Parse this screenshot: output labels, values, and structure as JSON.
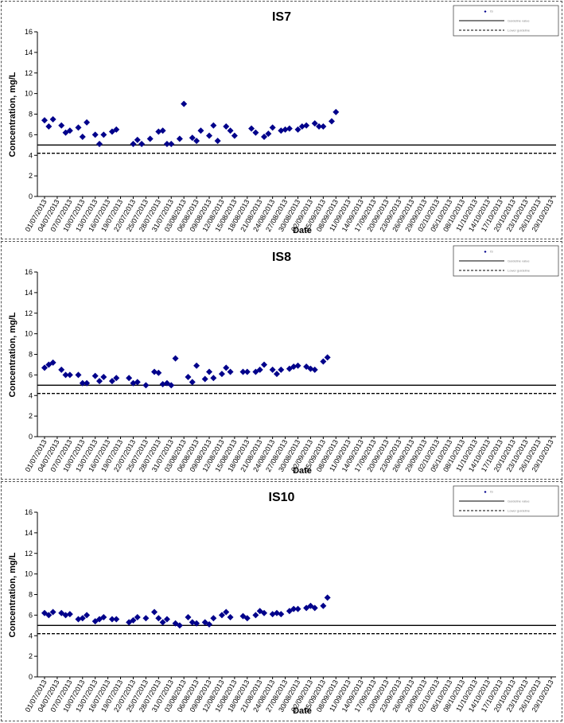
{
  "charts": [
    {
      "title": "IS7",
      "ylabel": "Concentration, mg/L",
      "xlabel": "Date",
      "legend": {
        "series": "IS",
        "line1": "Guideline value",
        "line2": "Lower guideline"
      }
    },
    {
      "title": "IS8",
      "ylabel": "Concentration, mg/L",
      "xlabel": "Date",
      "legend": {
        "series": "IS",
        "line1": "Guideline value",
        "line2": "Lower guideline"
      }
    },
    {
      "title": "IS10",
      "ylabel": "Concentration, mg/L",
      "xlabel": "Date",
      "legend": {
        "series": "IS",
        "line1": "Guideline value",
        "line2": "Lower guideline"
      }
    }
  ],
  "chart_data": [
    {
      "type": "scatter",
      "title": "IS7",
      "xlabel": "Date",
      "ylabel": "Concentration, mg/L",
      "ylim": [
        0,
        16
      ],
      "yticks": [
        0,
        2,
        4,
        6,
        8,
        10,
        12,
        14,
        16
      ],
      "x_tick_labels": [
        "01/07/2013",
        "04/07/2013",
        "07/07/2013",
        "10/07/2013",
        "13/07/2013",
        "16/07/2013",
        "19/07/2013",
        "22/07/2013",
        "25/07/2013",
        "28/07/2013",
        "31/07/2013",
        "03/08/2013",
        "06/08/2013",
        "09/08/2013",
        "12/08/2013",
        "15/08/2013",
        "18/08/2013",
        "21/08/2013",
        "24/08/2013",
        "27/08/2013",
        "30/08/2013",
        "02/09/2013",
        "05/09/2013",
        "08/09/2013",
        "11/09/2013",
        "14/09/2013",
        "17/09/2013",
        "20/09/2013",
        "23/09/2013",
        "26/09/2013",
        "29/09/2013",
        "02/10/2013",
        "05/10/2013",
        "08/10/2013",
        "11/10/2013",
        "14/10/2013",
        "17/10/2013",
        "20/10/2013",
        "23/10/2013",
        "26/10/2013",
        "29/10/2013"
      ],
      "reference_lines": [
        {
          "y": 5.0,
          "style": "solid"
        },
        {
          "y": 4.2,
          "style": "dashed"
        }
      ],
      "legend_position": "top-right",
      "series": [
        {
          "marker": "diamond",
          "color": "#00008B",
          "points": [
            [
              "01/07/2013",
              7.4
            ],
            [
              "02/07/2013",
              6.8
            ],
            [
              "03/07/2013",
              7.5
            ],
            [
              "05/07/2013",
              6.9
            ],
            [
              "06/07/2013",
              6.2
            ],
            [
              "07/07/2013",
              6.4
            ],
            [
              "09/07/2013",
              6.7
            ],
            [
              "10/07/2013",
              5.8
            ],
            [
              "11/07/2013",
              7.2
            ],
            [
              "13/07/2013",
              6.0
            ],
            [
              "14/07/2013",
              5.1
            ],
            [
              "15/07/2013",
              6.0
            ],
            [
              "17/07/2013",
              6.3
            ],
            [
              "18/07/2013",
              6.5
            ],
            [
              "22/07/2013",
              5.1
            ],
            [
              "23/07/2013",
              5.5
            ],
            [
              "24/07/2013",
              5.1
            ],
            [
              "26/07/2013",
              5.6
            ],
            [
              "28/07/2013",
              6.3
            ],
            [
              "29/07/2013",
              6.4
            ],
            [
              "30/07/2013",
              5.1
            ],
            [
              "31/07/2013",
              5.1
            ],
            [
              "02/08/2013",
              5.6
            ],
            [
              "03/08/2013",
              9.0
            ],
            [
              "05/08/2013",
              5.7
            ],
            [
              "06/08/2013",
              5.4
            ],
            [
              "07/08/2013",
              6.4
            ],
            [
              "09/08/2013",
              5.9
            ],
            [
              "10/08/2013",
              6.9
            ],
            [
              "11/08/2013",
              5.4
            ],
            [
              "13/08/2013",
              6.8
            ],
            [
              "14/08/2013",
              6.4
            ],
            [
              "15/08/2013",
              5.9
            ],
            [
              "19/08/2013",
              6.6
            ],
            [
              "20/08/2013",
              6.2
            ],
            [
              "22/08/2013",
              5.8
            ],
            [
              "23/08/2013",
              6.1
            ],
            [
              "24/08/2013",
              6.7
            ],
            [
              "26/08/2013",
              6.4
            ],
            [
              "27/08/2013",
              6.5
            ],
            [
              "28/08/2013",
              6.6
            ],
            [
              "30/08/2013",
              6.5
            ],
            [
              "31/08/2013",
              6.8
            ],
            [
              "01/09/2013",
              6.9
            ],
            [
              "03/09/2013",
              7.1
            ],
            [
              "04/09/2013",
              6.8
            ],
            [
              "05/09/2013",
              6.8
            ],
            [
              "07/09/2013",
              7.3
            ],
            [
              "08/09/2013",
              8.2
            ]
          ]
        }
      ]
    },
    {
      "type": "scatter",
      "title": "IS8",
      "xlabel": "Date",
      "ylabel": "Concentration, mg/L",
      "ylim": [
        0,
        16
      ],
      "yticks": [
        0,
        2,
        4,
        6,
        8,
        10,
        12,
        14,
        16
      ],
      "x_tick_labels": [
        "01/07/2013",
        "04/07/2013",
        "07/07/2013",
        "10/07/2013",
        "13/07/2013",
        "16/07/2013",
        "19/07/2013",
        "22/07/2013",
        "25/07/2013",
        "28/07/2013",
        "31/07/2013",
        "03/08/2013",
        "06/08/2013",
        "09/08/2013",
        "12/08/2013",
        "15/08/2013",
        "18/08/2013",
        "21/08/2013",
        "24/08/2013",
        "27/08/2013",
        "30/08/2013",
        "02/09/2013",
        "05/09/2013",
        "08/09/2013",
        "11/09/2013",
        "14/09/2013",
        "17/09/2013",
        "20/09/2013",
        "23/09/2013",
        "26/09/2013",
        "29/09/2013",
        "02/10/2013",
        "05/10/2013",
        "08/10/2013",
        "11/10/2013",
        "14/10/2013",
        "17/10/2013",
        "20/10/2013",
        "23/10/2013",
        "26/10/2013",
        "29/10/2013"
      ],
      "reference_lines": [
        {
          "y": 5.0,
          "style": "solid"
        },
        {
          "y": 4.2,
          "style": "dashed"
        }
      ],
      "legend_position": "top-right",
      "series": [
        {
          "marker": "diamond",
          "color": "#00008B",
          "points": [
            [
              "01/07/2013",
              6.7
            ],
            [
              "02/07/2013",
              7.0
            ],
            [
              "03/07/2013",
              7.2
            ],
            [
              "05/07/2013",
              6.5
            ],
            [
              "06/07/2013",
              6.0
            ],
            [
              "07/07/2013",
              6.0
            ],
            [
              "09/07/2013",
              6.0
            ],
            [
              "10/07/2013",
              5.2
            ],
            [
              "11/07/2013",
              5.2
            ],
            [
              "13/07/2013",
              5.9
            ],
            [
              "14/07/2013",
              5.4
            ],
            [
              "15/07/2013",
              5.8
            ],
            [
              "17/07/2013",
              5.4
            ],
            [
              "18/07/2013",
              5.7
            ],
            [
              "21/07/2013",
              5.7
            ],
            [
              "22/07/2013",
              5.2
            ],
            [
              "23/07/2013",
              5.3
            ],
            [
              "25/07/2013",
              5.0
            ],
            [
              "27/07/2013",
              6.3
            ],
            [
              "28/07/2013",
              6.2
            ],
            [
              "29/07/2013",
              5.1
            ],
            [
              "30/07/2013",
              5.2
            ],
            [
              "31/07/2013",
              5.0
            ],
            [
              "01/08/2013",
              7.6
            ],
            [
              "04/08/2013",
              5.8
            ],
            [
              "05/08/2013",
              5.3
            ],
            [
              "06/08/2013",
              6.9
            ],
            [
              "08/08/2013",
              5.6
            ],
            [
              "09/08/2013",
              6.3
            ],
            [
              "10/08/2013",
              5.7
            ],
            [
              "12/08/2013",
              6.1
            ],
            [
              "13/08/2013",
              6.7
            ],
            [
              "14/08/2013",
              6.3
            ],
            [
              "17/08/2013",
              6.3
            ],
            [
              "18/08/2013",
              6.3
            ],
            [
              "20/08/2013",
              6.3
            ],
            [
              "21/08/2013",
              6.5
            ],
            [
              "22/08/2013",
              7.0
            ],
            [
              "24/08/2013",
              6.5
            ],
            [
              "25/08/2013",
              6.1
            ],
            [
              "26/08/2013",
              6.5
            ],
            [
              "28/08/2013",
              6.6
            ],
            [
              "29/08/2013",
              6.8
            ],
            [
              "30/08/2013",
              6.9
            ],
            [
              "01/09/2013",
              6.8
            ],
            [
              "02/09/2013",
              6.6
            ],
            [
              "03/09/2013",
              6.5
            ],
            [
              "05/09/2013",
              7.3
            ],
            [
              "06/09/2013",
              7.7
            ]
          ]
        }
      ]
    },
    {
      "type": "scatter",
      "title": "IS10",
      "xlabel": "Date",
      "ylabel": "Concentration, mg/L",
      "ylim": [
        0,
        16
      ],
      "yticks": [
        0,
        2,
        4,
        6,
        8,
        10,
        12,
        14,
        16
      ],
      "x_tick_labels": [
        "01/07/2013",
        "04/07/2013",
        "07/07/2013",
        "10/07/2013",
        "13/07/2013",
        "16/07/2013",
        "19/07/2013",
        "22/07/2013",
        "25/07/2013",
        "28/07/2013",
        "31/07/2013",
        "03/08/2013",
        "06/08/2013",
        "09/08/2013",
        "12/08/2013",
        "15/08/2013",
        "18/08/2013",
        "21/08/2013",
        "24/08/2013",
        "27/08/2013",
        "30/08/2013",
        "02/09/2013",
        "05/09/2013",
        "08/09/2013",
        "11/09/2013",
        "14/09/2013",
        "17/09/2013",
        "20/09/2013",
        "23/09/2013",
        "26/09/2013",
        "29/09/2013",
        "02/10/2013",
        "05/10/2013",
        "08/10/2013",
        "11/10/2013",
        "14/10/2013",
        "17/10/2013",
        "20/10/2013",
        "23/10/2013",
        "26/10/2013",
        "29/10/2013"
      ],
      "reference_lines": [
        {
          "y": 5.0,
          "style": "solid"
        },
        {
          "y": 4.2,
          "style": "dashed"
        }
      ],
      "legend_position": "top-right",
      "series": [
        {
          "marker": "diamond",
          "color": "#00008B",
          "points": [
            [
              "01/07/2013",
              6.2
            ],
            [
              "02/07/2013",
              6.0
            ],
            [
              "03/07/2013",
              6.3
            ],
            [
              "05/07/2013",
              6.2
            ],
            [
              "06/07/2013",
              6.0
            ],
            [
              "07/07/2013",
              6.1
            ],
            [
              "09/07/2013",
              5.6
            ],
            [
              "10/07/2013",
              5.7
            ],
            [
              "11/07/2013",
              6.0
            ],
            [
              "13/07/2013",
              5.4
            ],
            [
              "14/07/2013",
              5.6
            ],
            [
              "15/07/2013",
              5.8
            ],
            [
              "17/07/2013",
              5.6
            ],
            [
              "18/07/2013",
              5.6
            ],
            [
              "21/07/2013",
              5.3
            ],
            [
              "22/07/2013",
              5.5
            ],
            [
              "23/07/2013",
              5.8
            ],
            [
              "25/07/2013",
              5.7
            ],
            [
              "27/07/2013",
              6.3
            ],
            [
              "28/07/2013",
              5.7
            ],
            [
              "29/07/2013",
              5.3
            ],
            [
              "30/07/2013",
              5.6
            ],
            [
              "01/08/2013",
              5.2
            ],
            [
              "02/08/2013",
              5.0
            ],
            [
              "04/08/2013",
              5.8
            ],
            [
              "05/08/2013",
              5.3
            ],
            [
              "06/08/2013",
              5.2
            ],
            [
              "08/08/2013",
              5.3
            ],
            [
              "09/08/2013",
              5.1
            ],
            [
              "10/08/2013",
              5.7
            ],
            [
              "12/08/2013",
              6.0
            ],
            [
              "13/08/2013",
              6.3
            ],
            [
              "14/08/2013",
              5.8
            ],
            [
              "17/08/2013",
              5.9
            ],
            [
              "18/08/2013",
              5.7
            ],
            [
              "20/08/2013",
              6.0
            ],
            [
              "21/08/2013",
              6.4
            ],
            [
              "22/08/2013",
              6.2
            ],
            [
              "24/08/2013",
              6.1
            ],
            [
              "25/08/2013",
              6.2
            ],
            [
              "26/08/2013",
              6.1
            ],
            [
              "28/08/2013",
              6.4
            ],
            [
              "29/08/2013",
              6.6
            ],
            [
              "30/08/2013",
              6.6
            ],
            [
              "01/09/2013",
              6.7
            ],
            [
              "02/09/2013",
              6.9
            ],
            [
              "03/09/2013",
              6.7
            ],
            [
              "05/09/2013",
              6.9
            ],
            [
              "06/09/2013",
              7.7
            ]
          ]
        }
      ]
    }
  ]
}
